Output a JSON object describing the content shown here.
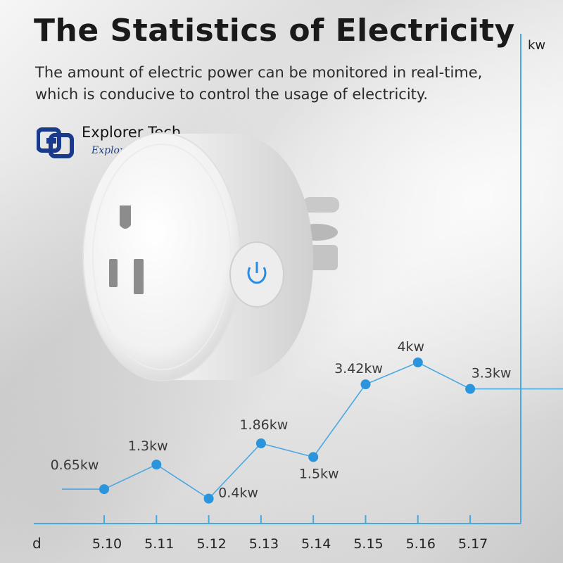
{
  "title": "The Statistics of Electricity",
  "subtitle": "The amount of electric power can be monitored in real-time, which is conducive to control the usage of electricity.",
  "brand": {
    "name": "Explorer Tech.",
    "tagline": "Explore a smart life",
    "colors": {
      "logo": "#1a3a8c",
      "tagline": "#1e3f8a"
    }
  },
  "colors": {
    "line": "#4aa8e0",
    "marker": "#2a95dc",
    "label": "#3a3a3a"
  },
  "chart_data": {
    "type": "line",
    "xlabel": "d",
    "ylabel": "kw",
    "categories": [
      "5.10",
      "5.11",
      "5.12",
      "5.13",
      "5.14",
      "5.15",
      "5.16",
      "5.17"
    ],
    "values": [
      0.65,
      1.3,
      0.4,
      1.86,
      1.5,
      3.42,
      4,
      3.3
    ],
    "data_labels": [
      "0.65kw",
      "1.3kw",
      "0.4kw",
      "1.86kw",
      "1.5kw",
      "3.42kw",
      "4kw",
      "3.3kw"
    ],
    "grid": false,
    "legend": "none"
  }
}
